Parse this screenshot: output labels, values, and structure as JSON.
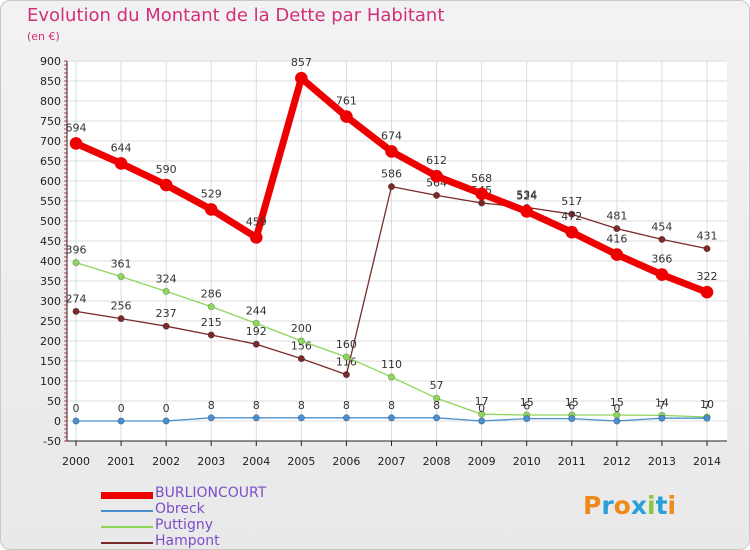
{
  "header": {
    "title": "Evolution du Montant de la Dette par Habitant",
    "subtitle": "(en €)"
  },
  "logo": {
    "text": "Proxiti",
    "colors": [
      "#f08a1c",
      "#2aa0d8",
      "#f08a1c",
      "#2aa0d8",
      "#8cc63f",
      "#2aa0d8",
      "#f08a1c"
    ]
  },
  "chart_data": {
    "type": "line",
    "title": "Evolution du Montant de la Dette par Habitant",
    "subtitle": "(en €)",
    "xlabel": "",
    "ylabel": "",
    "x": [
      2000,
      2001,
      2002,
      2003,
      2004,
      2005,
      2006,
      2007,
      2008,
      2009,
      2010,
      2011,
      2012,
      2013,
      2014
    ],
    "ylim": [
      -50,
      900
    ],
    "yticks": [
      -50,
      0,
      50,
      100,
      150,
      200,
      250,
      300,
      350,
      400,
      450,
      500,
      550,
      600,
      650,
      700,
      750,
      800,
      850,
      900
    ],
    "grid": true,
    "legend_position": "bottom-left",
    "series": [
      {
        "name": "BURLIONCOURT",
        "color": "#ee0000",
        "emphasis": true,
        "values": [
          694,
          644,
          590,
          529,
          459,
          857,
          761,
          674,
          612,
          568,
          524,
          472,
          416,
          366,
          322
        ]
      },
      {
        "name": "Obreck",
        "color": "#4a8fd0",
        "values": [
          0,
          0,
          0,
          8,
          8,
          8,
          8,
          8,
          8,
          0,
          6,
          6,
          0,
          7,
          7
        ]
      },
      {
        "name": "Puttigny",
        "color": "#8ed65c",
        "values": [
          396,
          361,
          324,
          286,
          244,
          200,
          160,
          110,
          57,
          17,
          15,
          15,
          15,
          14,
          10
        ]
      },
      {
        "name": "Hampont",
        "color": "#7a2a2a",
        "values": [
          274,
          256,
          237,
          215,
          192,
          156,
          116,
          586,
          564,
          545,
          534,
          517,
          481,
          454,
          431
        ]
      }
    ]
  }
}
